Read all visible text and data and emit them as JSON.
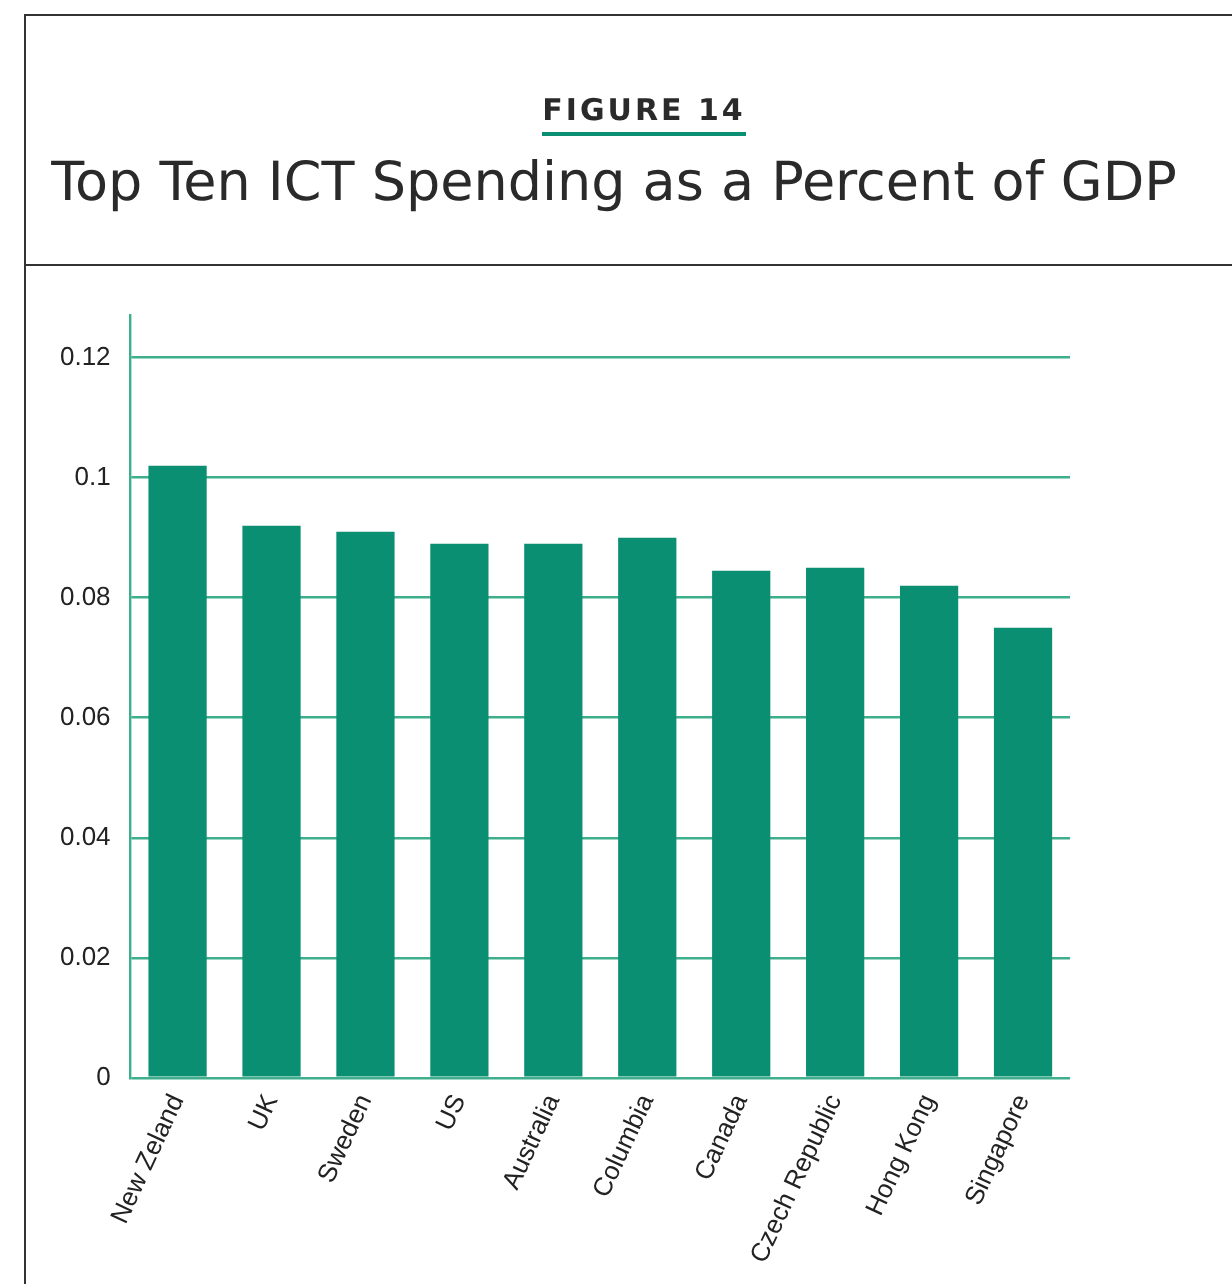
{
  "chart_data": {
    "type": "bar",
    "title": "Top Ten ICT Spending as a Percent of GDP",
    "annotations": [
      "FIGURE 14"
    ],
    "categories": [
      "New Zeland",
      "UK",
      "Sweden",
      "US",
      "Australia",
      "Columbia",
      "Canada",
      "Czech Republic",
      "Hong Kong",
      "Singapore"
    ],
    "values": [
      0.102,
      0.092,
      0.091,
      0.089,
      0.089,
      0.09,
      0.0845,
      0.085,
      0.082,
      0.075
    ],
    "color": "#0a8f72",
    "ylim": [
      0,
      0.127
    ],
    "yticks": [
      0,
      0.02,
      0.04,
      0.06,
      0.08,
      0.1,
      0.12
    ],
    "grid": "y",
    "legend": false
  }
}
